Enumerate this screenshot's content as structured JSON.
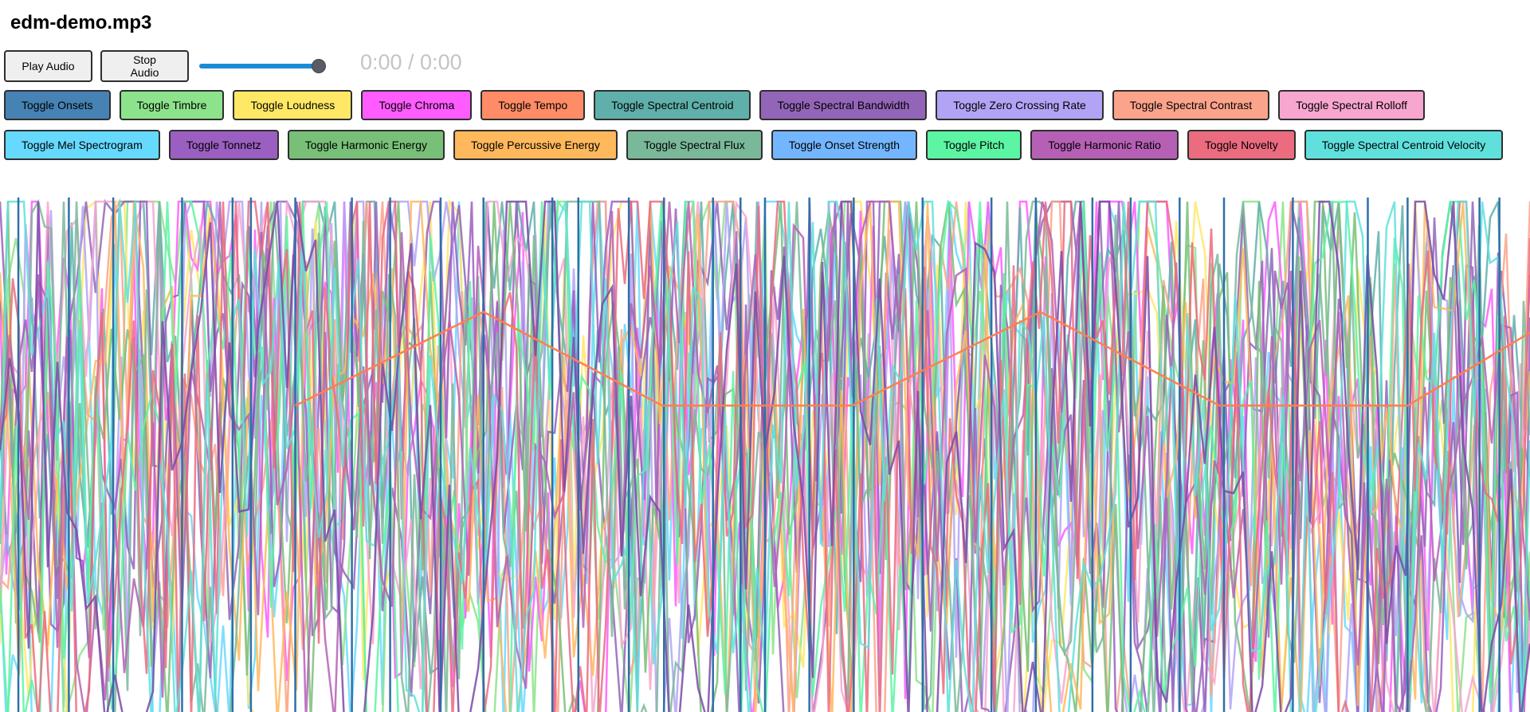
{
  "app": {
    "title": "edm-demo.mp3"
  },
  "controls": {
    "play_label": "Play Audio",
    "stop_label": "Stop Audio",
    "volume": 1.0,
    "time": "0:00 / 0:00"
  },
  "toggles_row1": [
    {
      "label": "Toggle Onsets",
      "color": "#4682b4"
    },
    {
      "label": "Toggle Timbre",
      "color": "#8de38b"
    },
    {
      "label": "Toggle Loudness",
      "color": "#ffe866"
    },
    {
      "label": "Toggle Chroma",
      "color": "#ff5cff"
    },
    {
      "label": "Toggle Tempo",
      "color": "#ff8c66"
    },
    {
      "label": "Toggle Spectral Centroid",
      "color": "#5fb0aa"
    },
    {
      "label": "Toggle Spectral Bandwidth",
      "color": "#9365b8"
    },
    {
      "label": "Toggle Zero Crossing Rate",
      "color": "#b3a3f5"
    },
    {
      "label": "Toggle Spectral Contrast",
      "color": "#fca38b"
    },
    {
      "label": "Toggle Spectral Rolloff",
      "color": "#f7a6cf"
    }
  ],
  "toggles_row2": [
    {
      "label": "Toggle Mel Spectrogram",
      "color": "#66d9ff"
    },
    {
      "label": "Toggle Tonnetz",
      "color": "#9a5fc0"
    },
    {
      "label": "Toggle Harmonic Energy",
      "color": "#78bf78"
    },
    {
      "label": "Toggle Percussive Energy",
      "color": "#ffb85c"
    },
    {
      "label": "Toggle Spectral Flux",
      "color": "#7ab89a"
    },
    {
      "label": "Toggle Onset Strength",
      "color": "#73b6ff"
    },
    {
      "label": "Toggle Pitch",
      "color": "#5cf5a3"
    },
    {
      "label": "Toggle Harmonic Ratio",
      "color": "#b560b5"
    },
    {
      "label": "Toggle Novelty",
      "color": "#eb6b7f"
    },
    {
      "label": "Toggle Spectral Centroid Velocity",
      "color": "#5fe0dd"
    }
  ],
  "visualization": {
    "onset_color": "#2f6fa8",
    "onset_times": [
      0.012,
      0.045,
      0.074,
      0.119,
      0.152,
      0.164,
      0.193,
      0.23,
      0.255,
      0.288,
      0.316,
      0.361,
      0.378,
      0.411,
      0.434,
      0.466,
      0.484,
      0.5,
      0.529,
      0.558,
      0.603,
      0.648,
      0.677,
      0.714,
      0.739,
      0.771,
      0.8,
      0.845,
      0.894,
      0.92,
      0.967,
      0.98
    ],
    "tempo_color": "#ff7f50",
    "tempo_curve": [
      [
        0.193,
        0.68
      ],
      [
        0.316,
        0.86
      ],
      [
        0.433,
        0.68
      ],
      [
        0.557,
        0.68
      ],
      [
        0.68,
        0.86
      ],
      [
        0.797,
        0.68
      ],
      [
        0.92,
        0.68
      ],
      [
        1.0,
        0.82
      ]
    ],
    "feature_series_colors": [
      "#66d9ff",
      "#8de38b",
      "#ffe866",
      "#ff5cff",
      "#5fb0aa",
      "#9365b8",
      "#b3a3f5",
      "#fca38b",
      "#f7a6cf",
      "#9a5fc0",
      "#78bf78",
      "#ffb85c",
      "#7ab89a",
      "#5cf5a3",
      "#b560b5",
      "#eb6b7f",
      "#5fe0dd",
      "#7a4aa8"
    ]
  }
}
